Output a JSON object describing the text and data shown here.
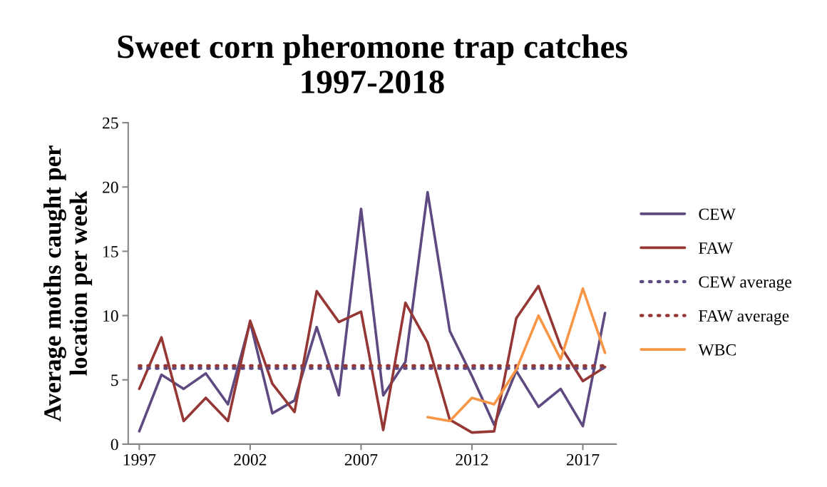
{
  "chart_data": {
    "type": "line",
    "title": "Sweet corn pheromone trap catches\n1997-2018",
    "ylabel": "Average moths caught per\nlocation per week",
    "x": [
      1997,
      1998,
      1999,
      2000,
      2001,
      2002,
      2003,
      2004,
      2005,
      2006,
      2007,
      2008,
      2009,
      2010,
      2011,
      2012,
      2013,
      2014,
      2015,
      2016,
      2017,
      2018
    ],
    "series": [
      {
        "name": "CEW",
        "color": "#5e4a80",
        "values": [
          1.0,
          5.4,
          4.3,
          5.5,
          3.1,
          9.5,
          2.4,
          3.4,
          9.1,
          3.8,
          18.3,
          3.8,
          6.4,
          19.6,
          8.8,
          5.3,
          1.5,
          5.7,
          2.9,
          4.3,
          1.4,
          10.2
        ]
      },
      {
        "name": "FAW",
        "color": "#953735",
        "values": [
          4.3,
          8.3,
          1.8,
          3.6,
          1.8,
          9.6,
          4.7,
          2.5,
          11.9,
          9.5,
          10.3,
          1.1,
          11.0,
          7.9,
          1.9,
          0.9,
          1.0,
          9.8,
          12.3,
          7.6,
          4.9,
          6.0
        ]
      },
      {
        "name": "CEW average",
        "color": "#5e4a80",
        "line_style": "dotted",
        "values": [
          5.9,
          5.9,
          5.9,
          5.9,
          5.9,
          5.9,
          5.9,
          5.9,
          5.9,
          5.9,
          5.9,
          5.9,
          5.9,
          5.9,
          5.9,
          5.9,
          5.9,
          5.9,
          5.9,
          5.9,
          5.9,
          5.9
        ]
      },
      {
        "name": "FAW average",
        "color": "#953735",
        "line_style": "dotted",
        "values": [
          6.1,
          6.1,
          6.1,
          6.1,
          6.1,
          6.1,
          6.1,
          6.1,
          6.1,
          6.1,
          6.1,
          6.1,
          6.1,
          6.1,
          6.1,
          6.1,
          6.1,
          6.1,
          6.1,
          6.1,
          6.1,
          6.1
        ]
      },
      {
        "name": "WBC",
        "color": "#f79646",
        "values": [
          null,
          null,
          null,
          null,
          null,
          null,
          null,
          null,
          null,
          null,
          null,
          null,
          null,
          2.1,
          1.8,
          3.6,
          3.1,
          5.8,
          10.0,
          6.6,
          12.1,
          7.1
        ]
      }
    ],
    "xlim": [
      1996.5,
      2018.5
    ],
    "xticks": [
      1997,
      2002,
      2007,
      2012,
      2017
    ],
    "ylim": [
      0,
      25
    ],
    "yticks": [
      0,
      5,
      10,
      15,
      20,
      25
    ],
    "grid": false,
    "legend": "right",
    "line_style": "solid",
    "marker": "none"
  }
}
